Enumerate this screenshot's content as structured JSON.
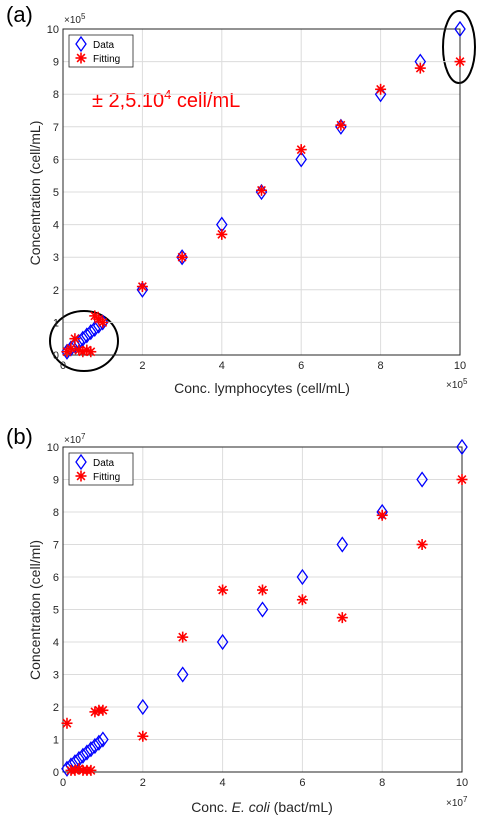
{
  "chart_data": [
    {
      "type": "scatter",
      "panel_label": "(a)",
      "xlabel": "Conc. lymphocytes (cell/mL)",
      "ylabel": "Concentration (cell/mL)",
      "x_multiplier": "×10",
      "x_exponent": "5",
      "y_multiplier": "×10",
      "y_exponent": "5",
      "xlim": [
        0,
        10
      ],
      "ylim": [
        0,
        10
      ],
      "xticks": [
        "0",
        "2",
        "4",
        "6",
        "8",
        "10"
      ],
      "yticks": [
        "0",
        "1",
        "2",
        "3",
        "4",
        "5",
        "6",
        "7",
        "8",
        "9",
        "10"
      ],
      "grid": true,
      "legend_position": "top-left",
      "annotation": {
        "text": "± 2,5.10",
        "sup": "4",
        "tail": " cell/mL",
        "color": "#ff0000"
      },
      "circles": [
        "bottom-left",
        "top-right"
      ],
      "series": [
        {
          "name": "Data",
          "marker": "diamond",
          "color": "#0000ff",
          "x": [
            0.1,
            0.2,
            0.3,
            0.4,
            0.5,
            0.6,
            0.7,
            0.8,
            0.9,
            1,
            2,
            3,
            4,
            5,
            6,
            7,
            8,
            9,
            10
          ],
          "y": [
            0.1,
            0.2,
            0.3,
            0.4,
            0.5,
            0.6,
            0.7,
            0.8,
            0.9,
            1,
            2,
            3,
            4,
            5,
            6,
            7,
            8,
            9,
            10
          ]
        },
        {
          "name": "Fitting",
          "marker": "asterisk",
          "color": "#ff0000",
          "x": [
            0.1,
            0.2,
            0.3,
            0.4,
            0.5,
            0.6,
            0.7,
            0.8,
            0.9,
            1,
            2,
            3,
            4,
            5,
            6,
            7,
            8,
            9,
            10
          ],
          "y": [
            0.1,
            0.2,
            0.5,
            0.15,
            0.1,
            0.15,
            0.1,
            1.2,
            1.1,
            1.0,
            2.1,
            3.0,
            3.7,
            5.05,
            6.3,
            7.05,
            8.15,
            8.8,
            9.0
          ]
        }
      ]
    },
    {
      "type": "scatter",
      "panel_label": "(b)",
      "xlabel_pre": "Conc. ",
      "xlabel_ital": "E. coli",
      "xlabel_post": " (bact/mL)",
      "ylabel": "Concentration (cell/ml)",
      "x_multiplier": "×10",
      "x_exponent": "7",
      "y_multiplier": "×10",
      "y_exponent": "7",
      "xlim": [
        0,
        10
      ],
      "ylim": [
        0,
        10
      ],
      "xticks": [
        "0",
        "2",
        "4",
        "6",
        "8",
        "10"
      ],
      "yticks": [
        "0",
        "1",
        "2",
        "3",
        "4",
        "5",
        "6",
        "7",
        "8",
        "9",
        "10"
      ],
      "grid": true,
      "legend_position": "top-left",
      "series": [
        {
          "name": "Data",
          "marker": "diamond",
          "color": "#0000ff",
          "x": [
            0.1,
            0.2,
            0.3,
            0.4,
            0.5,
            0.6,
            0.7,
            0.8,
            0.9,
            1,
            2,
            3,
            4,
            5,
            6,
            7,
            8,
            9,
            10
          ],
          "y": [
            0.1,
            0.2,
            0.3,
            0.4,
            0.5,
            0.6,
            0.7,
            0.8,
            0.9,
            1,
            2,
            3,
            4,
            5,
            6,
            7,
            8,
            9,
            10
          ]
        },
        {
          "name": "Fitting",
          "marker": "asterisk",
          "color": "#ff0000",
          "x": [
            0.1,
            0.2,
            0.3,
            0.4,
            0.5,
            0.6,
            0.7,
            0.8,
            0.9,
            1,
            2,
            3,
            4,
            5,
            6,
            7,
            8,
            9,
            10
          ],
          "y": [
            1.5,
            0.05,
            0.05,
            0.1,
            0.05,
            0.05,
            0.05,
            1.85,
            1.9,
            1.9,
            1.1,
            4.15,
            5.6,
            5.6,
            5.3,
            4.75,
            7.9,
            7.0,
            9.0
          ]
        }
      ]
    }
  ]
}
